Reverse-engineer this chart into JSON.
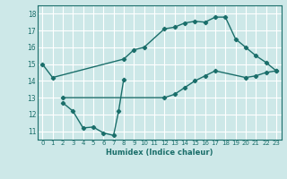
{
  "xlabel": "Humidex (Indice chaleur)",
  "bg_color": "#cde8e8",
  "grid_color": "#ffffff",
  "line_color": "#1a6e6a",
  "xlim": [
    -0.5,
    23.5
  ],
  "ylim": [
    10.5,
    18.5
  ],
  "xticks": [
    0,
    1,
    2,
    3,
    4,
    5,
    6,
    7,
    8,
    9,
    10,
    11,
    12,
    13,
    14,
    15,
    16,
    17,
    18,
    19,
    20,
    21,
    22,
    23
  ],
  "yticks": [
    11,
    12,
    13,
    14,
    15,
    16,
    17,
    18
  ],
  "line1_x": [
    0,
    1,
    8,
    9,
    10,
    12,
    13,
    14,
    15,
    16,
    17,
    18,
    19,
    20,
    21,
    22,
    23
  ],
  "line1_y": [
    15.0,
    14.2,
    15.3,
    15.85,
    16.0,
    17.1,
    17.2,
    17.45,
    17.55,
    17.5,
    17.8,
    17.8,
    16.5,
    16.0,
    15.5,
    15.1,
    14.6
  ],
  "line2_x": [
    2,
    12,
    13,
    14,
    15,
    16,
    17,
    20,
    21,
    22,
    23
  ],
  "line2_y": [
    13.0,
    13.0,
    13.2,
    13.6,
    14.0,
    14.3,
    14.6,
    14.2,
    14.3,
    14.5,
    14.6
  ],
  "line3_x": [
    2,
    3,
    4,
    5,
    6,
    7,
    7.5,
    8
  ],
  "line3_y": [
    12.7,
    12.2,
    11.2,
    11.25,
    10.9,
    10.75,
    12.2,
    14.1
  ]
}
